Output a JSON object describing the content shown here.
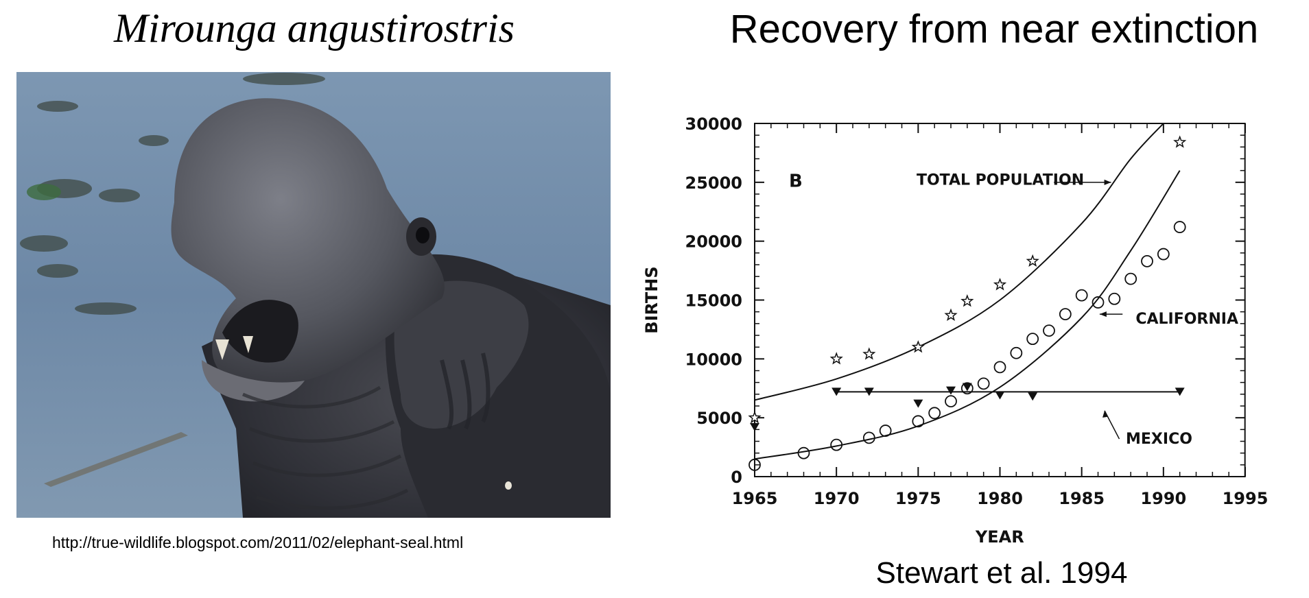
{
  "left_panel": {
    "title": "Mirounga angustirostris",
    "photo_url": "http://true-wildlife.blogspot.com/2011/02/elephant-seal.html"
  },
  "right_panel": {
    "title": "Recovery from near extinction",
    "citation": "Stewart et al. 1994"
  },
  "chart_data": {
    "type": "scatter",
    "panel_label": "B",
    "xlabel": "YEAR",
    "ylabel": "BIRTHS",
    "xlim": [
      1965,
      1995
    ],
    "ylim": [
      0,
      30000
    ],
    "x_ticks": [
      1965,
      1970,
      1975,
      1980,
      1985,
      1990,
      1995
    ],
    "y_ticks": [
      0,
      5000,
      10000,
      15000,
      20000,
      25000,
      30000
    ],
    "grid": false,
    "series": [
      {
        "name": "TOTAL POPULATION",
        "marker": "star",
        "x": [
          1965,
          1970,
          1972,
          1975,
          1977,
          1978,
          1980,
          1982,
          1991
        ],
        "y": [
          5000,
          10000,
          10400,
          11000,
          13700,
          14900,
          16300,
          18300,
          28400
        ],
        "fit_curve": [
          [
            1965,
            6500
          ],
          [
            1970,
            8300
          ],
          [
            1975,
            11000
          ],
          [
            1980,
            15000
          ],
          [
            1985,
            21500
          ],
          [
            1988,
            27000
          ],
          [
            1990,
            30000
          ]
        ]
      },
      {
        "name": "CALIFORNIA",
        "marker": "circle",
        "x": [
          1965,
          1968,
          1970,
          1972,
          1973,
          1975,
          1976,
          1977,
          1978,
          1979,
          1980,
          1981,
          1982,
          1983,
          1984,
          1985,
          1986,
          1987,
          1988,
          1989,
          1990,
          1991
        ],
        "y": [
          1000,
          2000,
          2700,
          3300,
          3900,
          4700,
          5400,
          6400,
          7500,
          7900,
          9300,
          10500,
          11700,
          12400,
          13800,
          15400,
          14800,
          15100,
          16800,
          18300,
          18900,
          21200
        ],
        "fit_curve": [
          [
            1965,
            1500
          ],
          [
            1970,
            2600
          ],
          [
            1975,
            4300
          ],
          [
            1980,
            7600
          ],
          [
            1985,
            13500
          ],
          [
            1988,
            19200
          ],
          [
            1991,
            26000
          ]
        ]
      },
      {
        "name": "MEXICO",
        "marker": "triangle-down",
        "x": [
          1965,
          1970,
          1972,
          1975,
          1977,
          1978,
          1980,
          1982,
          1991
        ],
        "y": [
          4200,
          7200,
          7200,
          6200,
          7300,
          7600,
          6900,
          6800,
          7200
        ],
        "fit_curve": [
          [
            1970,
            7200
          ],
          [
            1991,
            7200
          ]
        ]
      }
    ],
    "annotations": [
      {
        "text": "TOTAL POPULATION",
        "series": "TOTAL POPULATION"
      },
      {
        "text": "CALIFORNIA",
        "series": "CALIFORNIA"
      },
      {
        "text": "MEXICO",
        "series": "MEXICO"
      }
    ]
  }
}
